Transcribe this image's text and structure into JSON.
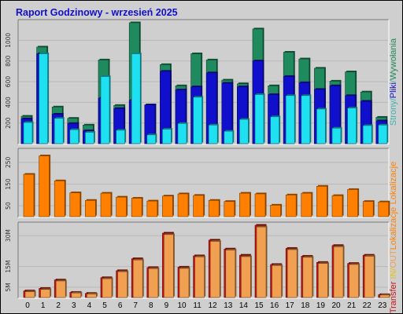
{
  "title": "Raport Godzinowy -  wrzesień 2025",
  "chart_data": [
    {
      "type": "bar",
      "panel": "top",
      "categories": [
        "0",
        "1",
        "2",
        "3",
        "4",
        "5",
        "6",
        "7",
        "8",
        "9",
        "10",
        "11",
        "12",
        "13",
        "14",
        "15",
        "16",
        "17",
        "18",
        "19",
        "20",
        "21",
        "22",
        "23"
      ],
      "yticks": [
        200,
        400,
        600,
        800,
        1000
      ],
      "ylim": [
        0,
        1170
      ],
      "side_label": [
        {
          "text": "Strony",
          "color": "#35b5b5"
        },
        {
          "text": "/",
          "color": "#35b5b5"
        },
        {
          "text": "Pliki",
          "color": "#1010cc"
        },
        {
          "text": "/",
          "color": "#35b5b5"
        },
        {
          "text": "Wywołania",
          "color": "#1f8a5e"
        }
      ],
      "series": [
        {
          "name": "Wywołania",
          "color": "#1f8a5e",
          "values": [
            265,
            935,
            355,
            245,
            180,
            810,
            370,
            1170,
            375,
            765,
            560,
            870,
            810,
            615,
            580,
            1110,
            560,
            885,
            820,
            730,
            605,
            695,
            500,
            255
          ]
        },
        {
          "name": "Pliki",
          "color": "#1010cc",
          "values": [
            240,
            870,
            285,
            195,
            125,
            440,
            340,
            420,
            375,
            700,
            520,
            550,
            685,
            585,
            550,
            800,
            475,
            650,
            590,
            525,
            560,
            465,
            410,
            220
          ]
        },
        {
          "name": "Strony",
          "color": "#1ee0f0",
          "values": [
            205,
            870,
            245,
            135,
            110,
            650,
            130,
            870,
            85,
            140,
            195,
            450,
            180,
            120,
            235,
            475,
            260,
            465,
            465,
            335,
            150,
            345,
            175,
            180
          ]
        }
      ]
    },
    {
      "type": "bar",
      "panel": "middle",
      "categories": [
        "0",
        "1",
        "2",
        "3",
        "4",
        "5",
        "6",
        "7",
        "8",
        "9",
        "10",
        "11",
        "12",
        "13",
        "14",
        "15",
        "16",
        "17",
        "18",
        "19",
        "20",
        "21",
        "22",
        "23"
      ],
      "yticks": [
        50,
        150,
        250
      ],
      "ylim": [
        0,
        300
      ],
      "side_label": [
        {
          "text": "Lokalizacje",
          "color": "#ff8000"
        }
      ],
      "series": [
        {
          "name": "Lokalizacje",
          "color": "#ff8000",
          "values": [
            195,
            280,
            165,
            110,
            75,
            108,
            90,
            85,
            72,
            95,
            105,
            98,
            75,
            70,
            108,
            105,
            53,
            100,
            108,
            140,
            97,
            125,
            70,
            68
          ]
        }
      ]
    },
    {
      "type": "bar",
      "panel": "bottom",
      "categories": [
        "0",
        "1",
        "2",
        "3",
        "4",
        "5",
        "6",
        "7",
        "8",
        "9",
        "10",
        "11",
        "12",
        "13",
        "14",
        "15",
        "16",
        "17",
        "18",
        "19",
        "20",
        "21",
        "22",
        "23"
      ],
      "yticks": [
        5,
        15,
        30
      ],
      "ytick_labels": [
        "5M",
        "15M",
        "30M"
      ],
      "ylim": [
        0,
        35
      ],
      "side_label": [
        {
          "text": "Transfer",
          "color": "#cc1010"
        },
        {
          "text": "  IN",
          "color": "#e6c20e"
        },
        {
          "text": "/",
          "color": "#e6c20e"
        },
        {
          "text": "OUT",
          "color": "#f0a050"
        },
        {
          "text": "Lokalizacje",
          "color": "#ff8000"
        }
      ],
      "series": [
        {
          "name": "Transfer",
          "color": "#cc1010",
          "values": [
            3.2,
            4.4,
            8.5,
            2.5,
            2.0,
            9.6,
            13.0,
            18.8,
            14.5,
            31.2,
            14.7,
            20.2,
            27.8,
            23.5,
            20.5,
            35.0,
            16.0,
            23.8,
            20.0,
            17.0,
            25.2,
            16.5,
            20.5,
            1.4
          ]
        },
        {
          "name": "OUT",
          "color": "#f0a050",
          "values": [
            2.8,
            3.9,
            8.0,
            2.2,
            1.7,
            9.1,
            12.5,
            18.2,
            14.0,
            30.5,
            14.1,
            19.7,
            27.2,
            23.0,
            19.8,
            34.2,
            15.5,
            23.2,
            19.5,
            16.5,
            24.6,
            16.0,
            20.0,
            1.2
          ]
        }
      ]
    }
  ]
}
